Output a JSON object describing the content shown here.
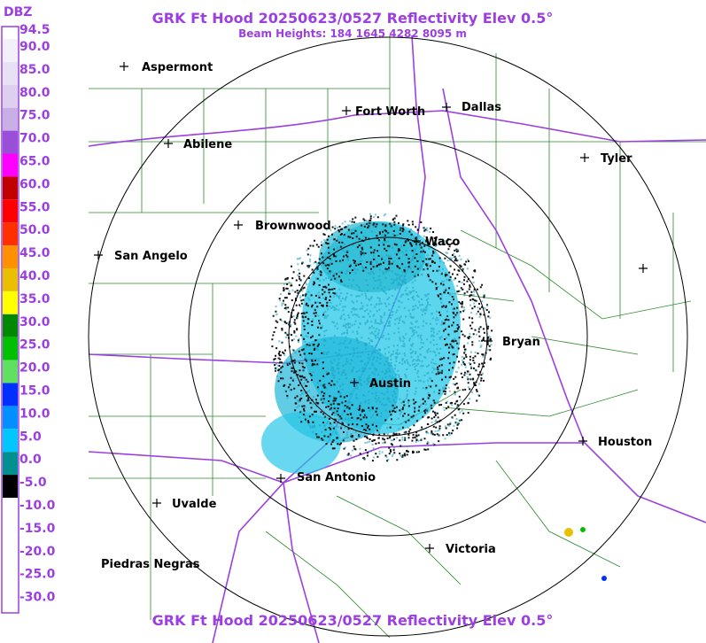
{
  "header": {
    "title": "GRK Ft Hood 20250623/0527 Reflectivity Elev 0.5°",
    "subtitle": "Beam Heights: 184 1645 4282 8095 m"
  },
  "legend": {
    "unit": "DBZ",
    "labels": [
      "94.5",
      "90.0",
      "85.0",
      "80.0",
      "75.0",
      "70.0",
      "65.0",
      "60.0",
      "55.0",
      "50.0",
      "45.0",
      "40.0",
      "35.0",
      "30.0",
      "25.0",
      "20.0",
      "15.0",
      "10.0",
      "5.0",
      "0.0",
      "-5.0",
      "-10.0",
      "-15.0",
      "-20.0",
      "-25.0",
      "-30.0"
    ]
  },
  "cities": [
    "Aspermont",
    "Fort Worth",
    "Dallas",
    "Abilene",
    "Tyler",
    "Brownwood",
    "Waco",
    "San Angelo",
    "Bryan",
    "Austin",
    "Houston",
    "San Antonio",
    "Uvalde",
    "Victoria",
    "Piedras Negras"
  ],
  "footer": {
    "title": "GRK Ft Hood 20250623/0527 Reflectivity Elev 0.5°"
  }
}
